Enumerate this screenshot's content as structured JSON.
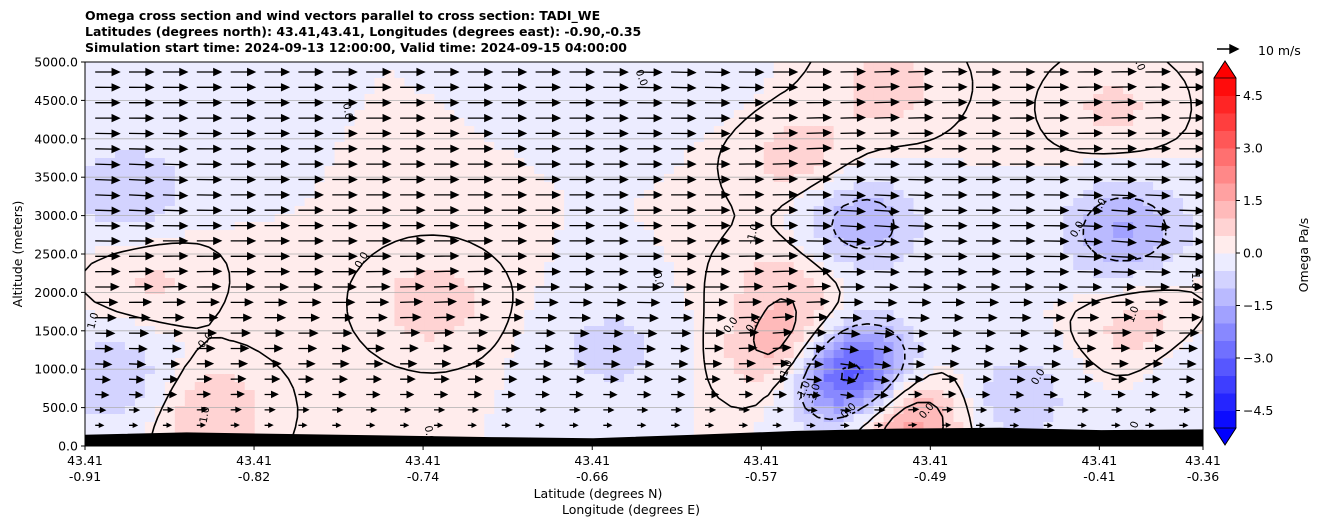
{
  "chart_data": {
    "type": "contour",
    "title_lines": [
      "Omega cross section and wind vectors parallel to cross section: TADI_WE",
      "Latitudes (degrees north): 43.41,43.41, Longitudes (degrees east): -0.90,-0.35",
      "Simulation start time: 2024-09-13 12:00:00, Valid time: 2024-09-15 04:00:00"
    ],
    "ylabel": "Altitude (meters)",
    "xlabel_lines": [
      "Latitude (degrees N)",
      "Longitude (degrees E)"
    ],
    "ylim": [
      0,
      5000
    ],
    "y_ticks": [
      {
        "value": 0,
        "label": "0.0"
      },
      {
        "value": 500,
        "label": "500.0"
      },
      {
        "value": 1000,
        "label": "1000.0"
      },
      {
        "value": 1500,
        "label": "1500.0"
      },
      {
        "value": 2000,
        "label": "2000.0"
      },
      {
        "value": 2500,
        "label": "2500.0"
      },
      {
        "value": 3000,
        "label": "3000.0"
      },
      {
        "value": 3500,
        "label": "3500.0"
      },
      {
        "value": 4000,
        "label": "4000.0"
      },
      {
        "value": 4500,
        "label": "4500.0"
      },
      {
        "value": 5000,
        "label": "5000.0"
      }
    ],
    "x_ticks": [
      {
        "frac": 0.0,
        "lat": "43.41",
        "lon": "-0.91"
      },
      {
        "frac": 0.1512,
        "lat": "43.41",
        "lon": "-0.82"
      },
      {
        "frac": 0.3024,
        "lat": "43.41",
        "lon": "-0.74"
      },
      {
        "frac": 0.4537,
        "lat": "43.41",
        "lon": "-0.66"
      },
      {
        "frac": 0.6049,
        "lat": "43.41",
        "lon": "-0.57"
      },
      {
        "frac": 0.7561,
        "lat": "43.41",
        "lon": "-0.49"
      },
      {
        "frac": 0.9073,
        "lat": "43.41",
        "lon": "-0.41"
      },
      {
        "frac": 1.0,
        "lat": "43.41",
        "lon": "-0.36"
      }
    ],
    "grid": "horizontal",
    "colorbar": {
      "label": "Omega Pa/s",
      "range": [
        -5,
        5
      ],
      "step": 0.5,
      "extend": "both",
      "ticks": [
        {
          "value": 4.5,
          "label": "4.5"
        },
        {
          "value": 3.0,
          "label": "3.0"
        },
        {
          "value": 1.5,
          "label": "1.5"
        },
        {
          "value": 0.0,
          "label": "0.0"
        },
        {
          "value": -1.5,
          "label": "−1.5"
        },
        {
          "value": -3.0,
          "label": "−3.0"
        },
        {
          "value": -4.5,
          "label": "−4.5"
        }
      ]
    },
    "quiver_key": {
      "label": "10 m/s",
      "speed": 10
    },
    "contour_labels": [
      "0.0",
      "-1.0",
      "-3.0",
      "1.0"
    ],
    "omega_features": [
      {
        "lon_frac": 0.04,
        "alt": 3300,
        "omega": -1.0
      },
      {
        "lon_frac": 0.03,
        "alt": 850,
        "omega": -1.0
      },
      {
        "lon_frac": 0.11,
        "alt": 450,
        "omega": 1.0
      },
      {
        "lon_frac": 0.06,
        "alt": 2200,
        "omega": 0.6
      },
      {
        "lon_frac": 0.31,
        "alt": 1850,
        "omega": 0.8
      },
      {
        "lon_frac": 0.47,
        "alt": 1250,
        "omega": -0.7
      },
      {
        "lon_frac": 0.53,
        "alt": 4900,
        "omega": -0.5
      },
      {
        "lon_frac": 0.64,
        "alt": 3700,
        "omega": 0.8
      },
      {
        "lon_frac": 0.63,
        "alt": 2200,
        "omega": 0.7
      },
      {
        "lon_frac": 0.64,
        "alt": 1200,
        "omega": 2.4
      },
      {
        "lon_frac": 0.69,
        "alt": 2900,
        "omega": -1.5
      },
      {
        "lon_frac": 0.68,
        "alt": 950,
        "omega": -4.8
      },
      {
        "lon_frac": 0.73,
        "alt": 400,
        "omega": 2.2
      },
      {
        "lon_frac": 0.72,
        "alt": 4700,
        "omega": 0.7
      },
      {
        "lon_frac": 0.83,
        "alt": 600,
        "omega": -0.9
      },
      {
        "lon_frac": 0.92,
        "alt": 4400,
        "omega": 0.6
      },
      {
        "lon_frac": 0.93,
        "alt": 2800,
        "omega": -1.6
      },
      {
        "lon_frac": 0.95,
        "alt": 1500,
        "omega": 0.9
      },
      {
        "lon_frac": 0.99,
        "alt": 1000,
        "omega": -0.7
      }
    ],
    "terrain_alt": [
      140,
      170,
      150,
      130,
      110,
      95,
      140,
      190,
      220,
      230,
      200,
      210
    ]
  }
}
